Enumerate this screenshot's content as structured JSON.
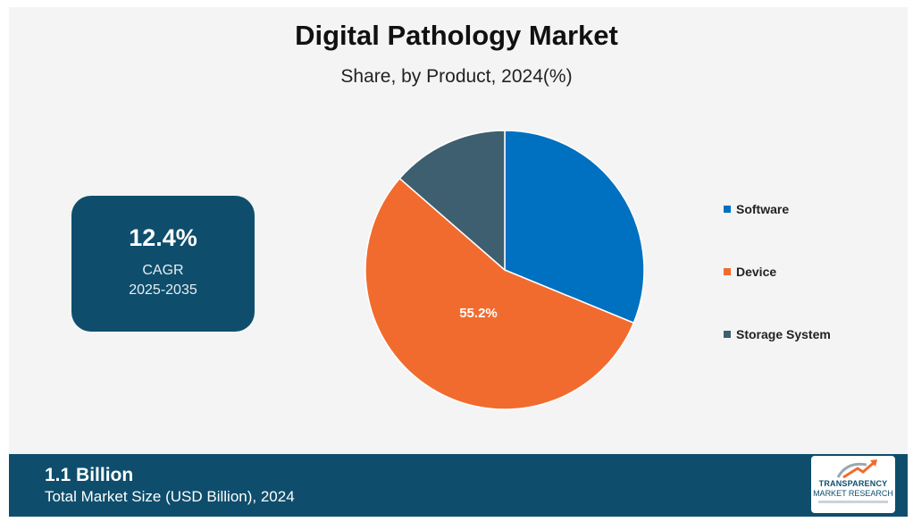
{
  "title": "Digital Pathology Market",
  "subtitle": "Share, by Product, 2024(%)",
  "cagr": {
    "value": "12.4%",
    "label": "CAGR",
    "period": "2025-2035"
  },
  "footer": {
    "value": "1.1 Billion",
    "label": "Total Market Size (USD Billion), 2024"
  },
  "logo": {
    "line1": "TRANSPARENCY",
    "line2": "MARKET RESEARCH"
  },
  "colors": {
    "software": "#0070c0",
    "device": "#f26b2e",
    "storage_system": "#3e5f70",
    "banner": "#0e4e6c"
  },
  "chart_data": {
    "type": "pie",
    "title": "Digital Pathology Market",
    "subtitle": "Share, by Product, 2024(%)",
    "categories": [
      "Software",
      "Device",
      "Storage System"
    ],
    "values": [
      31.2,
      55.2,
      13.6
    ],
    "data_labels": [
      "",
      "55.2%",
      ""
    ],
    "colors": [
      "#0070c0",
      "#f26b2e",
      "#3e5f70"
    ],
    "legend": "right",
    "start_angle": "12 o'clock",
    "direction": "clockwise"
  }
}
